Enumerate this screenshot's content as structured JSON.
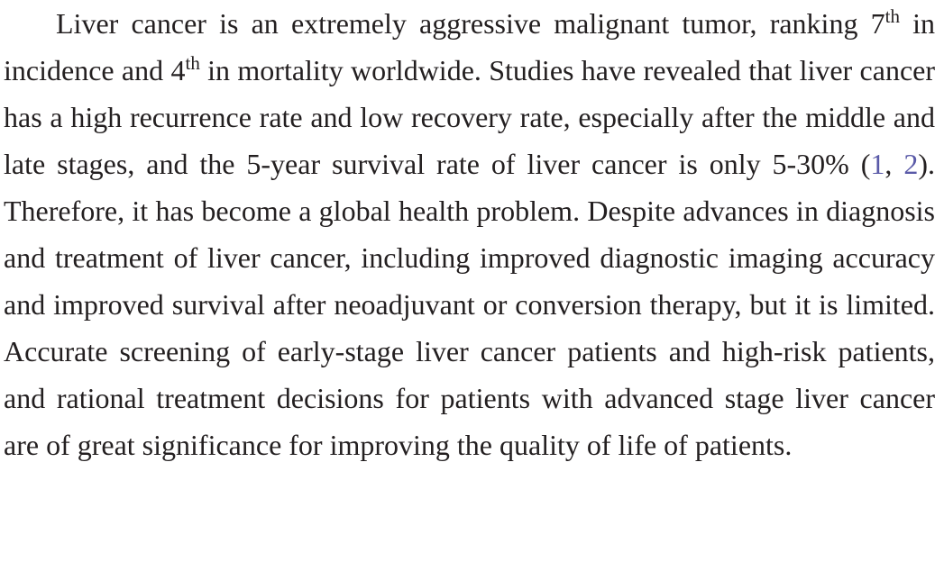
{
  "paragraph": {
    "seg1": "Liver cancer is an extremely aggressive malignant tumor, ranking 7",
    "sup1": "th",
    "seg2": " in incidence and 4",
    "sup2": "th",
    "seg3": " in mortality worldwide. Studies have revealed that liver cancer has a high recurrence rate and low recovery rate, especially after the middle and late stages, and the 5-year survival rate of liver cancer is only 5-30% (",
    "ref1": "1",
    "ref_sep": ", ",
    "ref2": "2",
    "seg4": "). Therefore, it has become a global health problem. Despite advances in diagnosis and treatment of liver cancer, including improved diagnostic imaging accuracy and improved survival after neoadjuvant or conversion therapy, but it is limited. Accurate screening of early-stage liver cancer patients and high-risk patients, and rational treatment decisions for patients with advanced stage liver cancer are of great significance for improving the quality of life of patients."
  },
  "colors": {
    "text": "#231f20",
    "link": "#5a5aa8",
    "background": "#ffffff"
  }
}
